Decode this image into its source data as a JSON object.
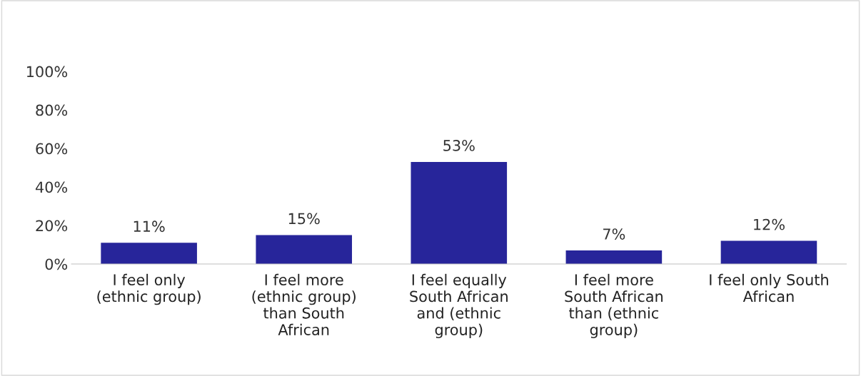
{
  "chart_data": {
    "type": "bar",
    "categories": [
      "I feel only\n(ethnic group)",
      "I feel more\n(ethnic group)\nthan South\nAfrican",
      "I feel equally\nSouth African\nand (ethnic\ngroup)",
      "I feel more\nSouth African\nthan (ethnic\ngroup)",
      "I feel only South\nAfrican"
    ],
    "values": [
      11,
      15,
      53,
      7,
      12
    ],
    "value_labels": [
      "11%",
      "15%",
      "53%",
      "7%",
      "12%"
    ],
    "color": "#27259a",
    "ylim": [
      0,
      100
    ],
    "yticks": [
      {
        "value": 0,
        "label": "0%"
      },
      {
        "value": 20,
        "label": "20%"
      },
      {
        "value": 40,
        "label": "40%"
      },
      {
        "value": 60,
        "label": "60%"
      },
      {
        "value": 80,
        "label": "80%"
      },
      {
        "value": 100,
        "label": "100%"
      }
    ],
    "grid": false,
    "legend": false
  }
}
